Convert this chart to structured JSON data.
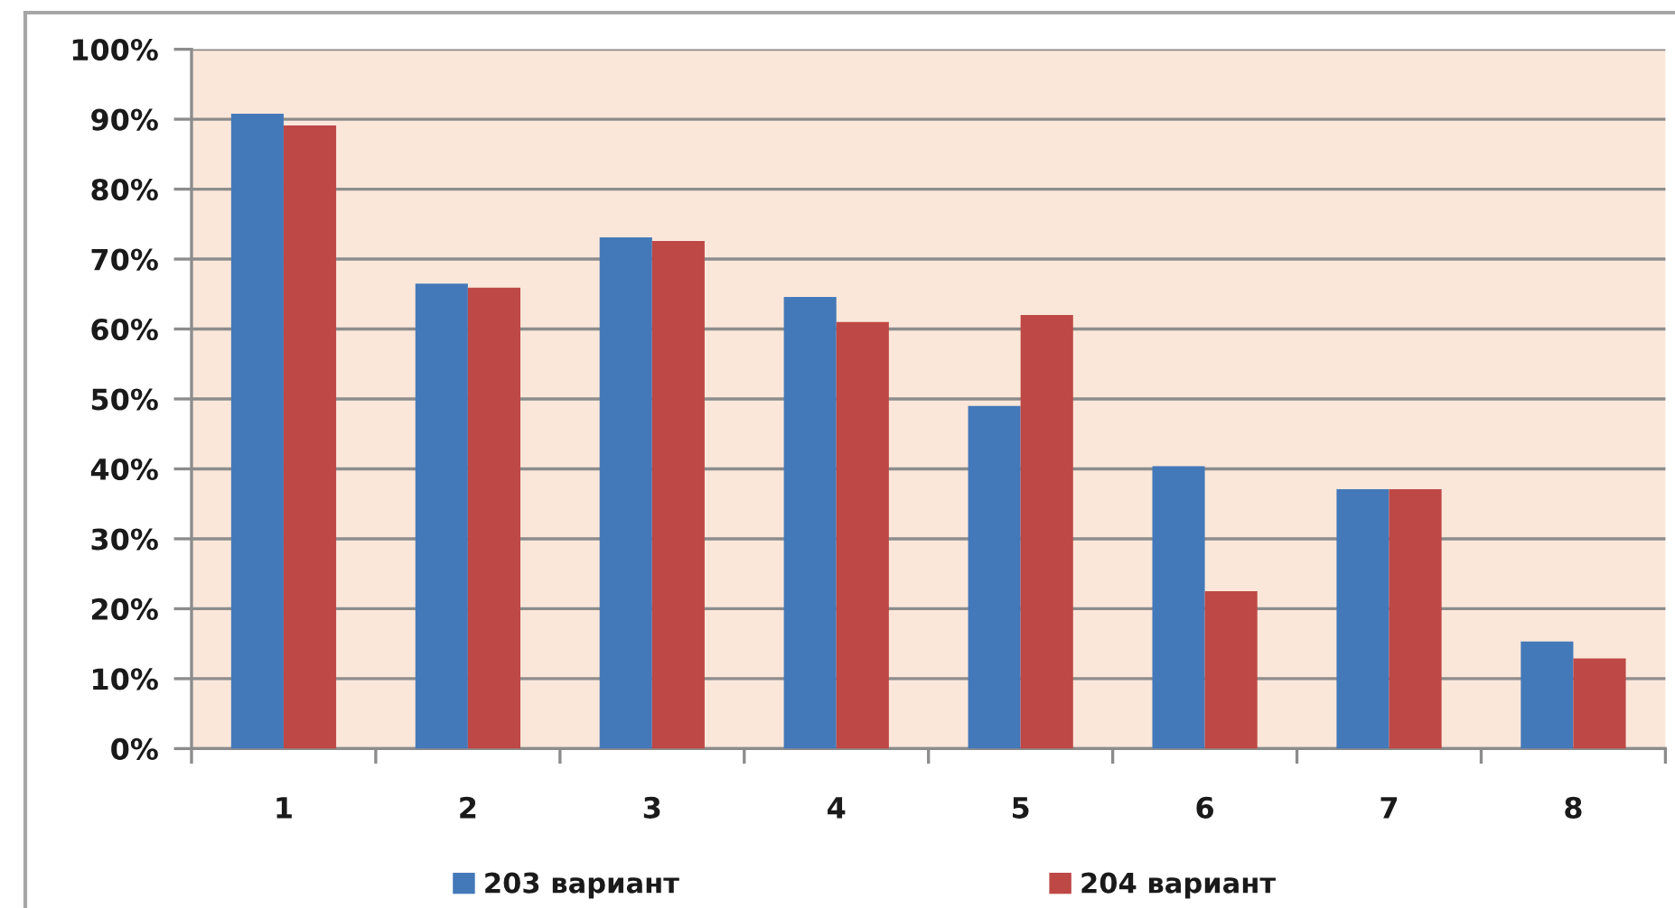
{
  "chart_data": {
    "type": "bar",
    "categories": [
      "1",
      "2",
      "3",
      "4",
      "5",
      "6",
      "7",
      "8"
    ],
    "series": [
      {
        "name": "203 вариант",
        "color": "#4479b9",
        "values": [
          90.8,
          66.5,
          73.1,
          64.6,
          49.0,
          40.4,
          37.1,
          15.3
        ]
      },
      {
        "name": "204 вариант",
        "color": "#be4845",
        "values": [
          89.1,
          65.9,
          72.6,
          61.0,
          62.0,
          22.5,
          37.1,
          12.9
        ]
      }
    ],
    "ylim": [
      0,
      100
    ],
    "yticks": [
      {
        "value": 0,
        "label": "0%"
      },
      {
        "value": 10,
        "label": "10%"
      },
      {
        "value": 20,
        "label": "20%"
      },
      {
        "value": 30,
        "label": "30%"
      },
      {
        "value": 40,
        "label": "40%"
      },
      {
        "value": 50,
        "label": "50%"
      },
      {
        "value": 60,
        "label": "60%"
      },
      {
        "value": 70,
        "label": "70%"
      },
      {
        "value": 80,
        "label": "80%"
      },
      {
        "value": 90,
        "label": "90%"
      },
      {
        "value": 100,
        "label": "100%"
      }
    ],
    "grid": "y",
    "legend": "bottom"
  }
}
